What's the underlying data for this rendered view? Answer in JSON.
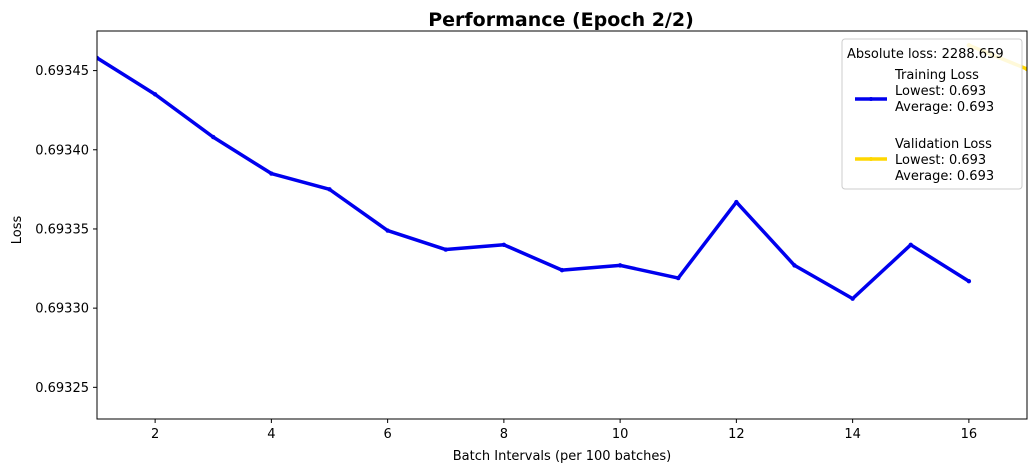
{
  "chart_data": {
    "type": "line",
    "title": "Performance (Epoch 2/2)",
    "xlabel": "Batch Intervals (per 100 batches)",
    "ylabel": "Loss",
    "xlim": [
      1,
      17
    ],
    "ylim": [
      0.69323,
      0.693475
    ],
    "x_ticks": [
      2,
      4,
      6,
      8,
      10,
      12,
      14,
      16
    ],
    "x_tick_labels": [
      "2",
      "4",
      "6",
      "8",
      "10",
      "12",
      "14",
      "16"
    ],
    "y_ticks": [
      0.69325,
      0.6933,
      0.69335,
      0.6934,
      0.69345
    ],
    "y_tick_labels": [
      "0.69325",
      "0.69330",
      "0.69335",
      "0.69340",
      "0.69345"
    ],
    "grid": false,
    "legend_position": "top-right",
    "series": [
      {
        "name": "Training Loss",
        "color": "#0000ee",
        "x": [
          1,
          2,
          3,
          4,
          5,
          6,
          7,
          8,
          9,
          10,
          11,
          12,
          13,
          14,
          15,
          16
        ],
        "values": [
          0.693458,
          0.693435,
          0.693408,
          0.693385,
          0.693375,
          0.693349,
          0.693337,
          0.69334,
          0.693324,
          0.693327,
          0.693319,
          0.693367,
          0.693327,
          0.693306,
          0.69334,
          0.693317
        ]
      },
      {
        "name": "Validation Loss",
        "color": "#ffd700",
        "x": [
          16,
          17
        ],
        "values": [
          0.693466,
          0.693451
        ]
      }
    ],
    "legend": {
      "header": "Absolute loss: 2288.659",
      "entries": [
        {
          "name": "Training Loss",
          "lines": [
            "Training Loss",
            "Lowest: 0.693",
            "Average: 0.693"
          ],
          "color": "#0000ee"
        },
        {
          "name": "Validation Loss",
          "lines": [
            "Validation Loss",
            "Lowest: 0.693",
            "Average: 0.693"
          ],
          "color": "#ffd700"
        }
      ]
    }
  }
}
